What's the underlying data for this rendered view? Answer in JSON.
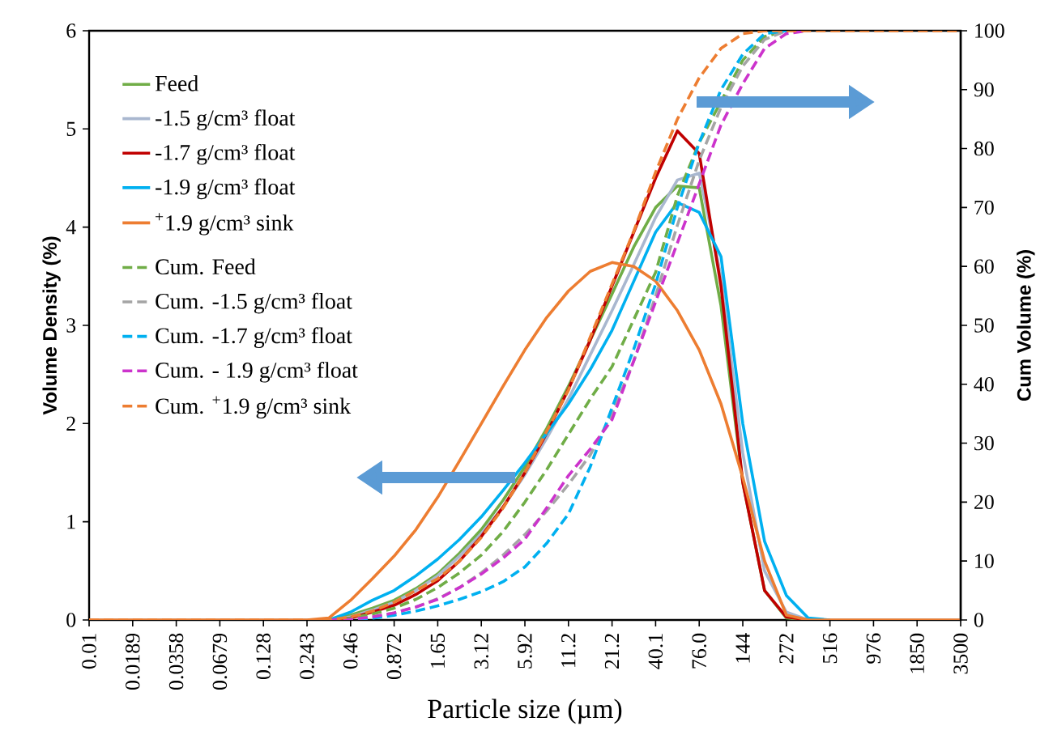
{
  "chart_data": {
    "type": "line",
    "xlabel": "Particle size (µm)",
    "ylabel": "Volume Density (%)",
    "y2label": "Cum Volume (%)",
    "categories": [
      "0.01",
      null,
      "0.0189",
      null,
      "0.0358",
      null,
      "0.0679",
      null,
      "0.128",
      null,
      "0.243",
      null,
      "0.46",
      null,
      "0.872",
      null,
      "1.65",
      null,
      "3.12",
      null,
      "5.92",
      null,
      "11.2",
      null,
      "21.2",
      null,
      "40.1",
      null,
      "76.0",
      null,
      "144",
      null,
      "272",
      null,
      "516",
      null,
      "976",
      null,
      "1850",
      null,
      "3500"
    ],
    "ylim": [
      0,
      6
    ],
    "yticks": [
      0,
      1,
      2,
      3,
      4,
      5,
      6
    ],
    "y2lim": [
      0,
      100
    ],
    "y2ticks": [
      0,
      10,
      20,
      30,
      40,
      50,
      60,
      70,
      80,
      90,
      100
    ],
    "legend": "top left",
    "marker": "none",
    "grid": false,
    "series": [
      {
        "name": "Feed",
        "color": "#70ad47",
        "line_style": "solid",
        "values": [
          null,
          null,
          null,
          null,
          null,
          null,
          null,
          null,
          null,
          null,
          null,
          0,
          0.05,
          0.12,
          0.2,
          0.32,
          0.47,
          0.68,
          0.92,
          1.22,
          1.56,
          1.95,
          2.38,
          2.85,
          3.32,
          3.8,
          4.2,
          4.42,
          4.4,
          3.2,
          1.4,
          0.3,
          0.02,
          0,
          null,
          null,
          null,
          null,
          null,
          null,
          null
        ]
      },
      {
        "name": "-1.5 g/cm³ float",
        "color": "#a9b7cf",
        "line_style": "solid",
        "values": [
          null,
          null,
          null,
          null,
          null,
          null,
          null,
          null,
          null,
          null,
          null,
          0,
          0.03,
          0.1,
          0.18,
          0.3,
          0.45,
          0.65,
          0.88,
          1.15,
          1.48,
          1.85,
          2.25,
          2.7,
          3.15,
          3.62,
          4.1,
          4.48,
          4.55,
          3.5,
          1.7,
          0.5,
          0.08,
          0,
          null,
          null,
          null,
          null,
          null,
          null,
          null
        ]
      },
      {
        "name": "-1.7 g/cm³ float",
        "color": "#c00000",
        "line_style": "solid",
        "values": [
          null,
          null,
          null,
          null,
          null,
          null,
          null,
          null,
          null,
          null,
          null,
          0,
          0.02,
          0.08,
          0.15,
          0.26,
          0.4,
          0.6,
          0.85,
          1.15,
          1.5,
          1.9,
          2.35,
          2.85,
          3.4,
          3.95,
          4.5,
          4.98,
          4.75,
          3.4,
          1.4,
          0.3,
          0.03,
          0,
          null,
          null,
          null,
          null,
          null,
          null,
          null
        ]
      },
      {
        "name": "-1.9 g/cm³ float",
        "color": "#00b0f0",
        "line_style": "solid",
        "values": [
          null,
          null,
          null,
          null,
          null,
          null,
          null,
          null,
          null,
          null,
          null,
          0,
          0.08,
          0.2,
          0.3,
          0.45,
          0.62,
          0.82,
          1.05,
          1.32,
          1.6,
          1.9,
          2.2,
          2.55,
          2.95,
          3.45,
          3.95,
          4.25,
          4.15,
          3.7,
          2.0,
          0.8,
          0.25,
          0.02,
          0,
          null,
          null,
          null,
          null,
          null,
          null
        ]
      },
      {
        "name": "$^{+}$1.9 g/cm³ sink",
        "color": "#ed7d31",
        "line_style": "solid",
        "values": [
          0,
          0,
          0,
          0,
          0,
          0,
          0,
          0,
          0,
          0,
          0,
          0.02,
          0.2,
          0.42,
          0.65,
          0.92,
          1.25,
          1.62,
          2.0,
          2.38,
          2.75,
          3.08,
          3.35,
          3.55,
          3.64,
          3.6,
          3.45,
          3.15,
          2.75,
          2.2,
          1.45,
          0.6,
          0.05,
          0,
          0,
          0,
          0,
          0,
          0,
          0,
          0
        ]
      },
      {
        "name": "Cum. Feed",
        "color": "#70ad47",
        "line_style": "dashed",
        "axis": "y2",
        "values": [
          null,
          null,
          null,
          null,
          null,
          null,
          null,
          null,
          null,
          null,
          null,
          0,
          0.3,
          1,
          2,
          3.5,
          5.5,
          8,
          11,
          15,
          20,
          25.5,
          31.5,
          37.5,
          43,
          51,
          59,
          72,
          81,
          88,
          95,
          99,
          100,
          null,
          null,
          null,
          null,
          null,
          null,
          null,
          null
        ]
      },
      {
        "name": "Cum. -1.5 g/cm³ float",
        "color": "#a5a5a5",
        "line_style": "dashed",
        "axis": "y2",
        "values": [
          null,
          null,
          null,
          null,
          null,
          null,
          null,
          null,
          null,
          null,
          null,
          0,
          0.1,
          0.5,
          1.2,
          2.2,
          3.6,
          5.5,
          8,
          11,
          14.5,
          18.5,
          23,
          28,
          35,
          44,
          55,
          67,
          78,
          87,
          94,
          98.5,
          100,
          null,
          null,
          null,
          null,
          null,
          null,
          null,
          null
        ]
      },
      {
        "name": "Cum. -1.7 g/cm³ float",
        "color": "#00b0f0",
        "line_style": "dashed",
        "axis": "y2",
        "values": [
          null,
          null,
          null,
          null,
          null,
          null,
          null,
          null,
          null,
          null,
          null,
          0,
          0,
          0.3,
          0.8,
          1.5,
          2.4,
          3.5,
          4.8,
          6.5,
          9,
          13,
          18,
          26,
          36,
          46,
          57,
          70,
          81,
          90,
          96,
          99.5,
          100,
          null,
          null,
          null,
          null,
          null,
          null,
          null,
          null
        ]
      },
      {
        "name": "Cum. - 1.9 g/cm³ float",
        "color": "#cc33cc",
        "line_style": "dashed",
        "axis": "y2",
        "values": [
          null,
          null,
          null,
          null,
          null,
          null,
          null,
          null,
          null,
          null,
          null,
          0,
          0.1,
          0.5,
          1.2,
          2.2,
          3.5,
          5.5,
          7.8,
          10.5,
          13.7,
          19,
          24.5,
          29,
          34,
          44,
          54,
          64,
          74,
          84,
          91,
          97,
          99.5,
          100,
          null,
          null,
          null,
          null,
          null,
          null,
          null
        ]
      },
      {
        "name": "Cum. $^{+}$1.9 g/cm³ sink",
        "color": "#ed7d31",
        "line_style": "dashed",
        "axis": "y2",
        "values": [
          0,
          0,
          0,
          0,
          0,
          0,
          0,
          0,
          0,
          0,
          0,
          0,
          0.5,
          1.5,
          3,
          5,
          7,
          10,
          14,
          19,
          25,
          32,
          39,
          48,
          57,
          66,
          76,
          85,
          92,
          97,
          99.5,
          100,
          100,
          100,
          100,
          100,
          100,
          100,
          100,
          100,
          100
        ]
      }
    ]
  }
}
